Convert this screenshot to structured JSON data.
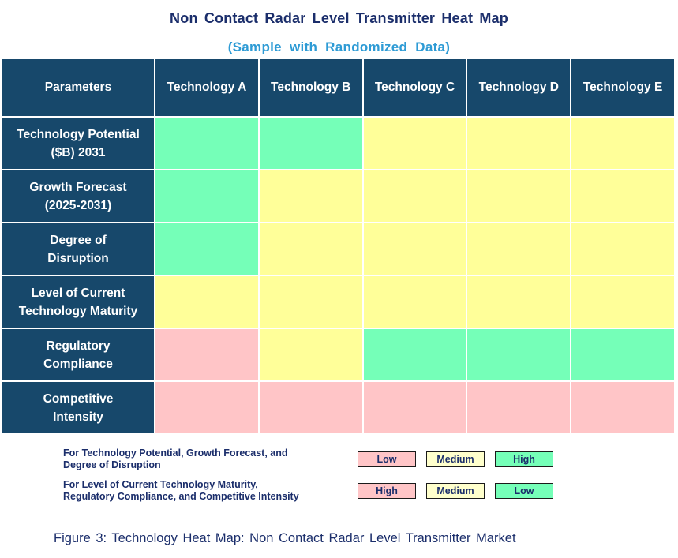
{
  "title": "Non Contact Radar Level Transmitter Heat Map",
  "subtitle": "(Sample with Randomized Data)",
  "caption": "Figure 3: Technology Heat Map: Non Contact Radar Level Transmitter Market",
  "colors": {
    "header_bg": "#17486B",
    "header_text": "#FFFFFF",
    "title_text": "#1B2E6B",
    "subtitle_text": "#2E9BD5",
    "body_text": "#1B2E6B",
    "high_green": "#75FFB8",
    "medium_yellow": "#FFFF99",
    "low_pink": "#FFC5C7",
    "legend_yellow": "#FFFFCC",
    "legend_border": "#1A1A1A"
  },
  "chart_data": {
    "type": "heatmap",
    "title": "Non Contact Radar Level Transmitter Heat Map",
    "subtitle": "(Sample with Randomized Data)",
    "columns": [
      "Parameters",
      "Technology A",
      "Technology B",
      "Technology C",
      "Technology D",
      "Technology E"
    ],
    "rows": [
      {
        "parameter": "Technology Potential ($B) 2031",
        "label_lines": [
          "Technology Potential",
          "($B) 2031"
        ],
        "values": [
          "High",
          "High",
          "Medium",
          "Medium",
          "Medium"
        ],
        "cell_colors": [
          "high_green",
          "high_green",
          "medium_yellow",
          "medium_yellow",
          "medium_yellow"
        ]
      },
      {
        "parameter": "Growth Forecast (2025-2031)",
        "label_lines": [
          "Growth Forecast",
          "(2025-2031)"
        ],
        "values": [
          "High",
          "Medium",
          "Medium",
          "Medium",
          "Medium"
        ],
        "cell_colors": [
          "high_green",
          "medium_yellow",
          "medium_yellow",
          "medium_yellow",
          "medium_yellow"
        ]
      },
      {
        "parameter": "Degree of Disruption",
        "label_lines": [
          "Degree of",
          "Disruption"
        ],
        "values": [
          "High",
          "Medium",
          "Medium",
          "Medium",
          "Medium"
        ],
        "cell_colors": [
          "high_green",
          "medium_yellow",
          "medium_yellow",
          "medium_yellow",
          "medium_yellow"
        ]
      },
      {
        "parameter": "Level of Current Technology Maturity",
        "label_lines": [
          "Level of Current",
          "Technology Maturity"
        ],
        "values": [
          "Medium",
          "Medium",
          "Medium",
          "Medium",
          "Medium"
        ],
        "cell_colors": [
          "medium_yellow",
          "medium_yellow",
          "medium_yellow",
          "medium_yellow",
          "medium_yellow"
        ]
      },
      {
        "parameter": "Regulatory Compliance",
        "label_lines": [
          "Regulatory",
          "Compliance"
        ],
        "values": [
          "High",
          "Medium",
          "Low",
          "Low",
          "Low"
        ],
        "cell_colors": [
          "low_pink",
          "medium_yellow",
          "high_green",
          "high_green",
          "high_green"
        ]
      },
      {
        "parameter": "Competitive Intensity",
        "label_lines": [
          "Competitive",
          "Intensity"
        ],
        "values": [
          "High",
          "High",
          "High",
          "High",
          "High"
        ],
        "cell_colors": [
          "low_pink",
          "low_pink",
          "low_pink",
          "low_pink",
          "low_pink"
        ]
      }
    ],
    "legend": [
      {
        "description": "For Technology Potential, Growth Forecast, and Degree of Disruption",
        "description_lines": [
          "For Technology Potential, Growth Forecast, and",
          "Degree of Disruption"
        ],
        "items": [
          {
            "label": "Low",
            "color": "low_pink"
          },
          {
            "label": "Medium",
            "color": "legend_yellow"
          },
          {
            "label": "High",
            "color": "high_green"
          }
        ]
      },
      {
        "description": "For Level of Current Technology Maturity, Regulatory Compliance, and Competitive Intensity",
        "description_lines": [
          "For Level of Current Technology Maturity,",
          "Regulatory Compliance, and Competitive Intensity"
        ],
        "items": [
          {
            "label": "High",
            "color": "low_pink"
          },
          {
            "label": "Medium",
            "color": "legend_yellow"
          },
          {
            "label": "Low",
            "color": "high_green"
          }
        ]
      }
    ]
  }
}
